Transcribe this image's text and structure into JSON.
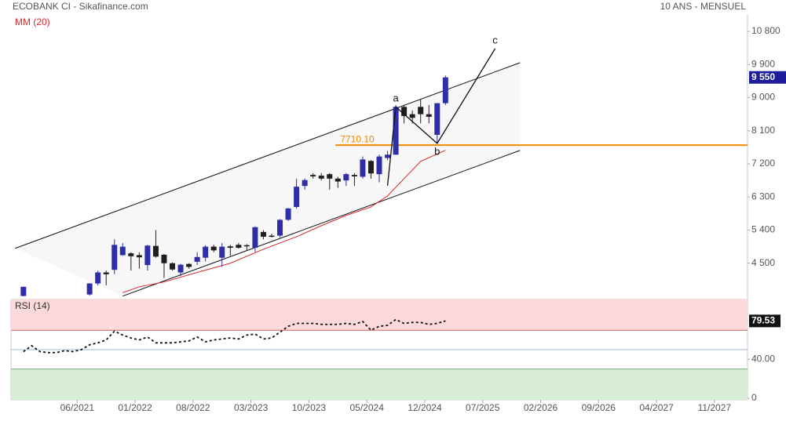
{
  "header": {
    "title": "ECOBANK CI - Sikafinance.com",
    "period": "10 ANS - MENSUEL"
  },
  "chart_data": [
    {
      "type": "candlestick",
      "up_color": "#2e2ea8",
      "down_color": "#1f1f1f",
      "xlim": [
        "10/2020",
        "03/2028"
      ],
      "xticks": [
        "06/2021",
        "01/2022",
        "08/2022",
        "03/2023",
        "10/2023",
        "05/2024",
        "12/2024",
        "07/2025",
        "02/2026",
        "09/2026",
        "04/2027",
        "11/2027"
      ],
      "ylim": [
        3600,
        11270
      ],
      "yticks": [
        {
          "value": 4500,
          "label": "4 500"
        },
        {
          "value": 5400,
          "label": "5 400"
        },
        {
          "value": 6300,
          "label": "6 300"
        },
        {
          "value": 7200,
          "label": "7 200"
        },
        {
          "value": 8100,
          "label": "8 100"
        },
        {
          "value": 9000,
          "label": "9 000"
        },
        {
          "value": 9900,
          "label": "9 900"
        },
        {
          "value": 10800,
          "label": "10 800"
        }
      ],
      "x": [
        "11/2020",
        "07/2021",
        "08/2021",
        "09/2021",
        "10/2021",
        "11/2021",
        "12/2021",
        "01/2022",
        "02/2022",
        "03/2022",
        "04/2022",
        "05/2022",
        "06/2022",
        "07/2022",
        "08/2022",
        "09/2022",
        "10/2022",
        "11/2022",
        "12/2022",
        "01/2023",
        "02/2023",
        "03/2023",
        "04/2023",
        "05/2023",
        "06/2023",
        "07/2023",
        "08/2023",
        "09/2023",
        "10/2023",
        "11/2023",
        "12/2023",
        "01/2024",
        "02/2024",
        "03/2024",
        "04/2024",
        "05/2024",
        "06/2024",
        "07/2024",
        "08/2024",
        "09/2024",
        "10/2024",
        "11/2024",
        "12/2024",
        "01/2025",
        "02/2025"
      ],
      "open": [
        3610,
        3650,
        3950,
        4250,
        4320,
        4720,
        4770,
        4720,
        4450,
        4970,
        4730,
        4500,
        4250,
        4480,
        4540,
        4650,
        4950,
        4650,
        4960,
        5000,
        4990,
        4920,
        5350,
        5250,
        5250,
        5680,
        6030,
        6600,
        6900,
        6880,
        6920,
        6800,
        6750,
        6900,
        6850,
        7280,
        6920,
        7360,
        7450,
        8750,
        8550,
        8750,
        8550,
        7990,
        8850
      ],
      "high": [
        3860,
        3960,
        4300,
        4300,
        5150,
        5050,
        4800,
        4800,
        5000,
        5400,
        4750,
        4520,
        4480,
        4500,
        4800,
        4990,
        5000,
        5050,
        5000,
        5050,
        5020,
        5500,
        5400,
        5300,
        5700,
        6000,
        6800,
        6800,
        6950,
        6950,
        6950,
        6850,
        6950,
        6950,
        7400,
        7300,
        7450,
        7550,
        8800,
        8800,
        8650,
        8950,
        8800,
        8850,
        9600
      ],
      "low": [
        3600,
        3620,
        3900,
        3900,
        4200,
        4700,
        4300,
        4350,
        4300,
        4650,
        4100,
        4300,
        4150,
        4350,
        4450,
        4550,
        4800,
        4400,
        4700,
        4900,
        4850,
        4800,
        5150,
        5200,
        5200,
        5650,
        5980,
        6500,
        6800,
        6750,
        6500,
        6550,
        6600,
        6600,
        6800,
        6800,
        6700,
        7300,
        7450,
        8300,
        8300,
        8300,
        8300,
        7750,
        8800
      ],
      "close": [
        3860,
        3950,
        4250,
        4200,
        5000,
        4950,
        4690,
        4660,
        4980,
        4680,
        4500,
        4330,
        4460,
        4400,
        4670,
        4950,
        4850,
        4950,
        4920,
        4920,
        4960,
        5480,
        5220,
        5230,
        5680,
        5990,
        6580,
        6760,
        6860,
        6800,
        6800,
        6720,
        6920,
        6860,
        7320,
        6940,
        7400,
        7450,
        8750,
        8500,
        8450,
        8550,
        8480,
        8850,
        9550
      ],
      "last_label": {
        "value": 9550,
        "label": "9 550"
      },
      "overlay": {
        "name": "MM (20)",
        "color": "#d9262c",
        "x": [
          "11/2021",
          "01/2022",
          "04/2022",
          "08/2022",
          "12/2022",
          "04/2023",
          "08/2023",
          "11/2023",
          "02/2024",
          "05/2024",
          "07/2024",
          "09/2024",
          "11/2024",
          "02/2025"
        ],
        "values": [
          3700,
          3860,
          3990,
          4250,
          4500,
          4880,
          5220,
          5520,
          5800,
          6030,
          6330,
          6800,
          7270,
          7570
        ]
      },
      "level": {
        "value": 7710.1,
        "label": "7710.10",
        "color": "#f08a00"
      },
      "channel": [
        {
          "x": [
            "10/2020",
            "11/2025"
          ],
          "values": [
            4905,
            9949
          ]
        },
        {
          "x": [
            "11/2021",
            "11/2025"
          ],
          "values": [
            3607,
            7565
          ]
        }
      ],
      "waves": {
        "x": [
          "07/2024",
          "08/2024",
          "01/2025",
          "08/2025"
        ],
        "values": [
          6608,
          8750,
          7757,
          10332
        ],
        "labels": [
          null,
          "a",
          "b",
          "c"
        ]
      }
    },
    {
      "type": "line",
      "title": "RSI (14)",
      "ylim": [
        0,
        101.6
      ],
      "yticks": [
        0,
        {
          "value": 40,
          "label": "40.00"
        }
      ],
      "overbought": 70,
      "oversold": 30,
      "midline": 50,
      "x": [
        "11/2020",
        "12/2020",
        "01/2021",
        "02/2021",
        "03/2021",
        "04/2021",
        "05/2021",
        "06/2021",
        "07/2021",
        "08/2021",
        "09/2021",
        "10/2021",
        "11/2021",
        "12/2021",
        "01/2022",
        "02/2022",
        "03/2022",
        "04/2022",
        "05/2022",
        "06/2022",
        "07/2022",
        "08/2022",
        "09/2022",
        "10/2022",
        "11/2022",
        "12/2022",
        "01/2023",
        "02/2023",
        "03/2023",
        "04/2023",
        "05/2023",
        "06/2023",
        "07/2023",
        "08/2023",
        "09/2023",
        "10/2023",
        "11/2023",
        "12/2023",
        "01/2024",
        "02/2024",
        "03/2024",
        "04/2024",
        "05/2024",
        "06/2024",
        "07/2024",
        "08/2024",
        "09/2024",
        "10/2024",
        "11/2024",
        "12/2024",
        "01/2025",
        "02/2025"
      ],
      "values": [
        48,
        54,
        48,
        47,
        47,
        49,
        48,
        50,
        55,
        57,
        60,
        69,
        65,
        62,
        60,
        63,
        57,
        57,
        57,
        58,
        59,
        63,
        58,
        60,
        61,
        62,
        61,
        65,
        66,
        61,
        62,
        68,
        74,
        77,
        77,
        77,
        76,
        76,
        76,
        77,
        76,
        79,
        70,
        74,
        75,
        81,
        77,
        78,
        78,
        76,
        77,
        79.53
      ]
    }
  ]
}
